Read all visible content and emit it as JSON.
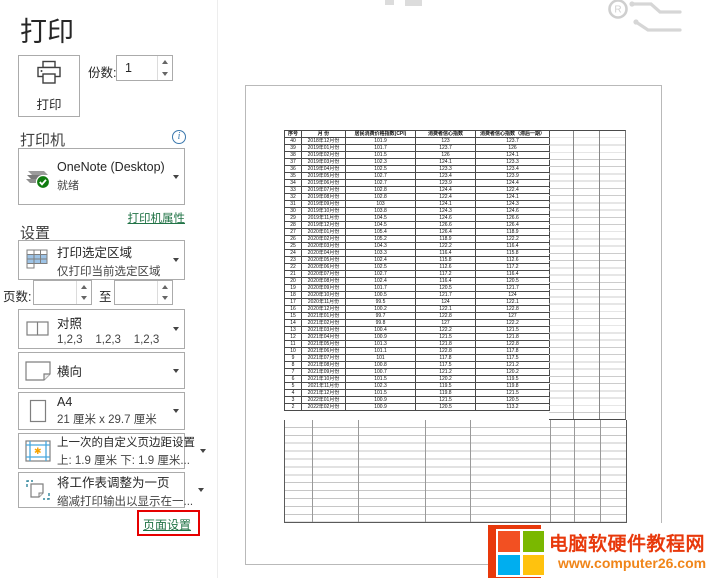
{
  "page_title": "打印",
  "print_button": {
    "label": "打印"
  },
  "copies": {
    "label": "份数:",
    "value": "1"
  },
  "printer_section": {
    "heading": "打印机",
    "info_icon_glyph": "i",
    "name": "OneNote (Desktop)",
    "status": "就绪",
    "properties_link": "打印机属性"
  },
  "settings_section": {
    "heading": "设置",
    "print_area": {
      "line1": "打印选定区域",
      "line2": "仅打印当前选定区域"
    },
    "pages": {
      "label": "页数:",
      "to_label": "至",
      "from_value": "",
      "to_value": ""
    },
    "collation": {
      "line1": "对照",
      "line2": "1,2,3    1,2,3    1,2,3"
    },
    "orientation": {
      "line1": "横向"
    },
    "paper": {
      "line1": "A4",
      "line2": "21 厘米 x 29.7 厘米"
    },
    "margins": {
      "line1": "上一次的自定义页边距设置",
      "line2": "上: 1.9 厘米 下: 1.9 厘米..."
    },
    "scaling": {
      "line1": "将工作表调整为一页",
      "line2": "缩减打印输出以显示在一..."
    },
    "page_setup_link": "页面设置"
  },
  "preview": {
    "table": {
      "headers": [
        "序号",
        "月 份",
        "居民消费价格指数(CPI)",
        "消费者信心指数",
        "消费者信心指数（滞后一期）"
      ],
      "rows": [
        [
          "40",
          "2018年12月份",
          "101.9",
          "123",
          "123.7"
        ],
        [
          "39",
          "2019年01月份",
          "101.7",
          "123.7",
          "126"
        ],
        [
          "38",
          "2019年02月份",
          "101.5",
          "126",
          "124.1"
        ],
        [
          "37",
          "2019年03月份",
          "102.3",
          "124.1",
          "123.3"
        ],
        [
          "36",
          "2019年04月份",
          "102.5",
          "123.3",
          "123.4"
        ],
        [
          "35",
          "2019年05月份",
          "102.7",
          "123.4",
          "123.9"
        ],
        [
          "34",
          "2019年06月份",
          "102.7",
          "123.9",
          "124.4"
        ],
        [
          "33",
          "2019年07月份",
          "102.8",
          "124.4",
          "122.4"
        ],
        [
          "32",
          "2019年08月份",
          "102.8",
          "122.4",
          "124.1"
        ],
        [
          "31",
          "2019年09月份",
          "103",
          "124.1",
          "124.3"
        ],
        [
          "30",
          "2019年10月份",
          "103.8",
          "124.3",
          "124.6"
        ],
        [
          "29",
          "2019年11月份",
          "104.5",
          "124.6",
          "126.6"
        ],
        [
          "28",
          "2019年12月份",
          "104.5",
          "126.6",
          "126.4"
        ],
        [
          "27",
          "2020年01月份",
          "105.4",
          "126.4",
          "118.9"
        ],
        [
          "26",
          "2020年02月份",
          "105.2",
          "118.9",
          "122.2"
        ],
        [
          "25",
          "2020年03月份",
          "104.3",
          "122.2",
          "116.4"
        ],
        [
          "24",
          "2020年04月份",
          "103.3",
          "116.4",
          "115.8"
        ],
        [
          "23",
          "2020年05月份",
          "102.4",
          "115.8",
          "112.6"
        ],
        [
          "22",
          "2020年06月份",
          "102.5",
          "112.6",
          "117.2"
        ],
        [
          "21",
          "2020年07月份",
          "102.7",
          "117.2",
          "116.4"
        ],
        [
          "20",
          "2020年08月份",
          "102.4",
          "116.4",
          "120.5"
        ],
        [
          "19",
          "2020年09月份",
          "101.7",
          "120.5",
          "121.7"
        ],
        [
          "18",
          "2020年10月份",
          "100.5",
          "121.7",
          "124"
        ],
        [
          "17",
          "2020年11月份",
          "99.5",
          "124",
          "122.1"
        ],
        [
          "16",
          "2020年12月份",
          "100.2",
          "122.1",
          "122.8"
        ],
        [
          "15",
          "2021年01月份",
          "99.7",
          "122.8",
          "127"
        ],
        [
          "14",
          "2021年02月份",
          "99.8",
          "127",
          "122.2"
        ],
        [
          "13",
          "2021年03月份",
          "100.4",
          "122.2",
          "121.5"
        ],
        [
          "12",
          "2021年04月份",
          "100.9",
          "121.5",
          "121.8"
        ],
        [
          "11",
          "2021年05月份",
          "101.3",
          "121.8",
          "122.8"
        ],
        [
          "10",
          "2021年06月份",
          "101.1",
          "122.8",
          "117.8"
        ],
        [
          "9",
          "2021年07月份",
          "101",
          "117.8",
          "117.5"
        ],
        [
          "8",
          "2021年08月份",
          "100.8",
          "117.5",
          "121.2"
        ],
        [
          "7",
          "2021年09月份",
          "100.7",
          "121.2",
          "120.2"
        ],
        [
          "6",
          "2021年10月份",
          "101.5",
          "120.2",
          "119.5"
        ],
        [
          "5",
          "2021年11月份",
          "102.3",
          "119.5",
          "119.8"
        ],
        [
          "4",
          "2021年12月份",
          "101.5",
          "119.8",
          "121.5"
        ],
        [
          "3",
          "2022年01月份",
          "100.9",
          "121.5",
          "120.5"
        ],
        [
          "2",
          "2022年02月份",
          "100.9",
          "120.5",
          "113.2"
        ]
      ]
    }
  },
  "watermark": {
    "site_name": "电脑软硬件教程网",
    "site_url": "www.computer26.com"
  },
  "decoration": {
    "registered_symbol": "R"
  },
  "colors": {
    "accent_green": "#217346",
    "annotation_red": "#e60000",
    "status_green": "#107c10",
    "info_blue": "#3b78ad",
    "watermark_red": "#e8390c",
    "watermark_orange": "#f08519",
    "flag_top_left": "#f25022",
    "flag_top_right": "#7ab800",
    "flag_bottom_left": "#00aeef",
    "flag_bottom_right": "#ffc20e"
  }
}
